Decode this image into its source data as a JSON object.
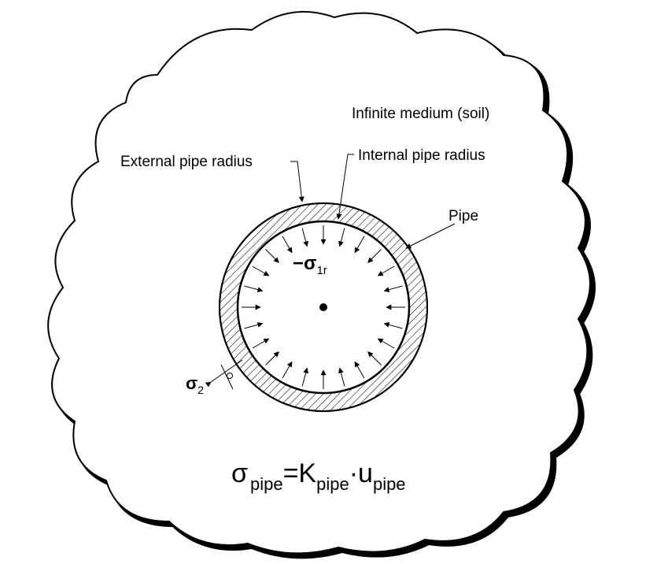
{
  "labels": {
    "medium": "Infinite medium (soil)",
    "external_radius": "External pipe radius",
    "internal_radius": "Internal pipe radius",
    "pipe": "Pipe"
  },
  "internal_stress": {
    "sign": "−",
    "symbol": "σ",
    "subscript": "1r"
  },
  "external_stress": {
    "symbol": "σ",
    "subscript": "2"
  },
  "equation": {
    "sigma": "σ",
    "sigma_sub": "pipe",
    "equals_k": "=K",
    "k_sub": "pipe",
    "dot_u": "·u",
    "u_sub": "pipe"
  },
  "colors": {
    "ink": "#000000",
    "background": "#ffffff"
  }
}
